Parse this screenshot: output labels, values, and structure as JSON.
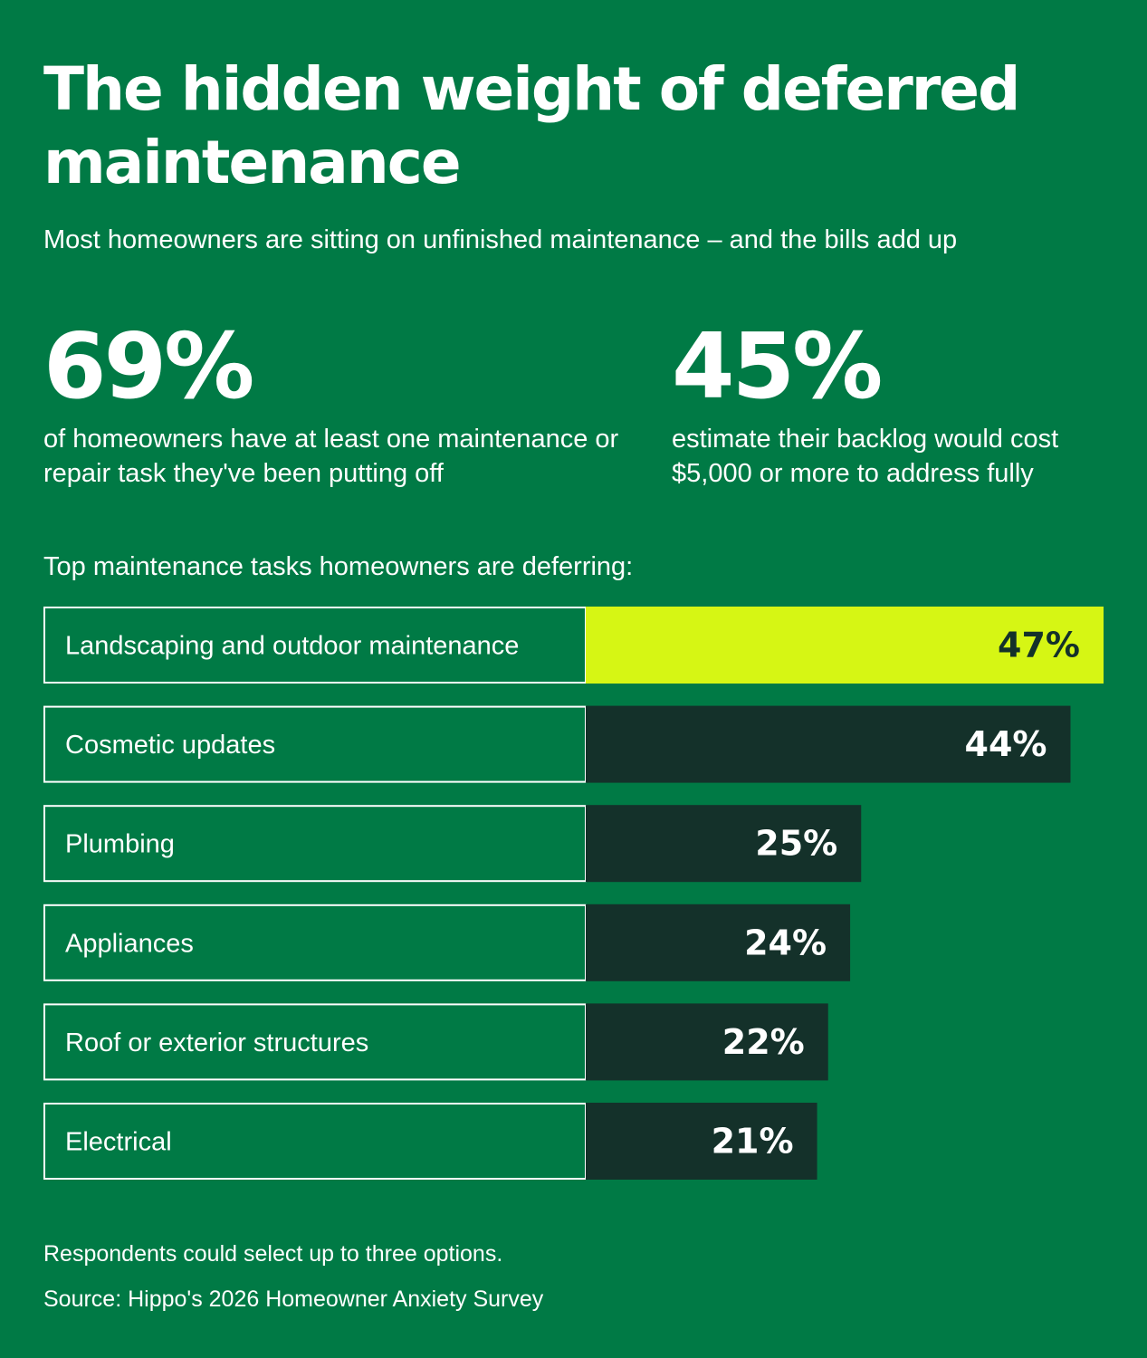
{
  "title": "The hidden weight of deferred maintenance",
  "subtitle": "Most homeowners are sitting on unfinished maintenance – and the bills add up",
  "stats": [
    {
      "value": "69%",
      "text": "of homeowners have at least one maintenance or repair task they've been putting off"
    },
    {
      "value": "45%",
      "text": "estimate their backlog would cost $5,000 or more to address fully"
    }
  ],
  "colors": {
    "background": "#007a45",
    "highlight_bar": "#d6f614",
    "bar": "#14312a",
    "text": "#ffffff",
    "highlight_text": "#14312a"
  },
  "chart_data": {
    "type": "bar",
    "orientation": "horizontal",
    "title": "Top maintenance tasks homeowners are deferring:",
    "categories": [
      "Landscaping and outdoor maintenance",
      "Cosmetic updates",
      "Plumbing",
      "Appliances",
      "Roof or exterior structures",
      "Electrical"
    ],
    "values": [
      47,
      44,
      25,
      24,
      22,
      21
    ],
    "value_labels": [
      "47%",
      "44%",
      "25%",
      "24%",
      "22%",
      "21%"
    ],
    "highlight_index": 0,
    "xlim": [
      0,
      47
    ],
    "grid": false
  },
  "footnotes": [
    "Respondents could select up to three options.",
    "Source: Hippo's 2026 Homeowner Anxiety Survey"
  ]
}
